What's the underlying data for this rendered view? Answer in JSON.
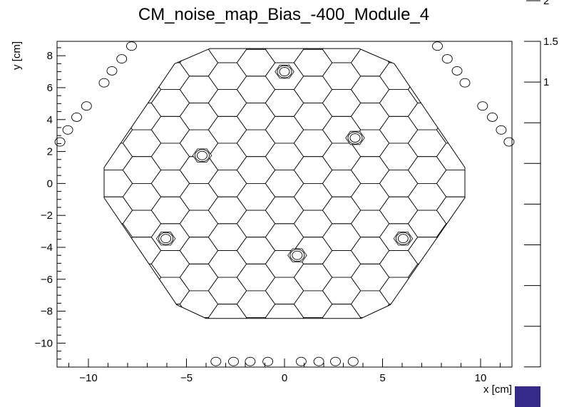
{
  "chart_data": {
    "type": "heatmap",
    "title": "CM_noise_map_Bias_-400_Module_4",
    "xlabel": "x [cm]",
    "ylabel": "y [cm]",
    "xlim": [
      -11.6,
      11.6
    ],
    "ylim": [
      -11.5,
      8.9
    ],
    "x_ticks": [
      -10,
      -5,
      0,
      5,
      10
    ],
    "x_tick_labels": [
      "−10",
      "−5",
      "0",
      "5",
      "10"
    ],
    "y_ticks": [
      -10,
      -8,
      -6,
      -4,
      -2,
      0,
      2,
      4,
      6,
      8
    ],
    "y_tick_labels": [
      "−10",
      "−8",
      "−6",
      "−4",
      "−2",
      "0",
      "2",
      "4",
      "6",
      "8"
    ],
    "colorbar": {
      "labeled_ticks": [
        1,
        1.5,
        2
      ],
      "tick_labels": [
        "1",
        "1.5",
        "2"
      ],
      "color": "#352a87"
    },
    "hexagon_module": {
      "cell_radius_cm": 0.97,
      "rows": 21,
      "vertices": [
        [
          -3.8,
          8.45
        ],
        [
          3.8,
          8.45
        ],
        [
          5.6,
          7.5
        ],
        [
          9.2,
          1.0
        ],
        [
          9.2,
          -0.9
        ],
        [
          5.4,
          -7.6
        ],
        [
          3.9,
          -8.45
        ],
        [
          -4.0,
          -8.45
        ],
        [
          -5.5,
          -7.6
        ],
        [
          -9.2,
          -0.9
        ],
        [
          -9.2,
          1.0
        ],
        [
          -5.6,
          7.5
        ]
      ]
    },
    "calibration_cells": [
      [
        0.0,
        7.0
      ],
      [
        3.6,
        2.85
      ],
      [
        -4.2,
        1.75
      ],
      [
        -6.05,
        -3.45
      ],
      [
        0.65,
        -4.5
      ],
      [
        6.05,
        -3.45
      ]
    ],
    "outer_circles": {
      "top_left": [
        [
          -7.8,
          8.6
        ],
        [
          -8.3,
          7.8
        ],
        [
          -8.8,
          7.05
        ],
        [
          -9.2,
          6.3
        ],
        [
          -10.1,
          4.85
        ],
        [
          -10.6,
          4.15
        ],
        [
          -11.05,
          3.35
        ],
        [
          -11.45,
          2.6
        ]
      ],
      "top_right": [
        [
          7.8,
          8.6
        ],
        [
          8.3,
          7.8
        ],
        [
          8.8,
          7.05
        ],
        [
          9.2,
          6.3
        ],
        [
          10.1,
          4.85
        ],
        [
          10.6,
          4.15
        ],
        [
          11.05,
          3.35
        ],
        [
          11.45,
          2.6
        ]
      ],
      "bottom": [
        [
          -3.5,
          -11.15
        ],
        [
          -2.6,
          -11.15
        ],
        [
          -1.75,
          -11.15
        ],
        [
          -0.85,
          -11.15
        ],
        [
          0.85,
          -11.15
        ],
        [
          1.75,
          -11.15
        ],
        [
          2.6,
          -11.15
        ],
        [
          3.5,
          -11.15
        ]
      ]
    }
  }
}
